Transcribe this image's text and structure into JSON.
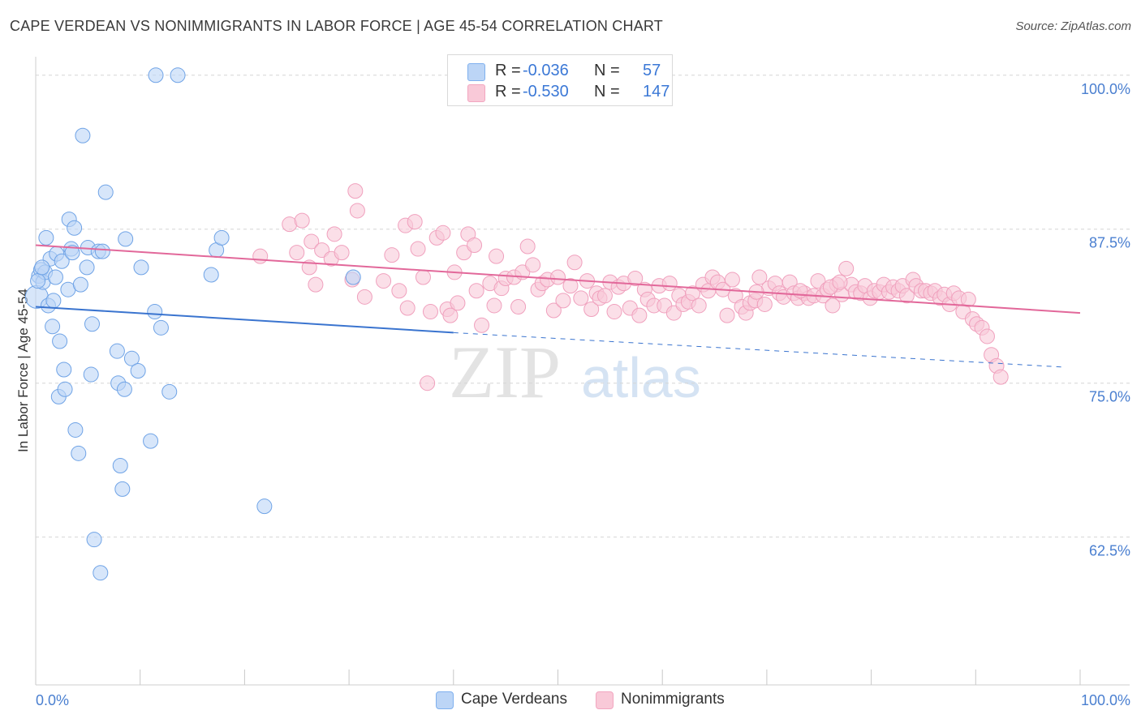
{
  "title": "CAPE VERDEAN VS NONIMMIGRANTS IN LABOR FORCE | AGE 45-54 CORRELATION CHART",
  "source": "Source: ZipAtlas.com",
  "watermark": {
    "zip": "ZIP",
    "atlas": "atlas"
  },
  "legend_top": {
    "r_label": "R = ",
    "n_label": "N = ",
    "rows": [
      {
        "r": "-0.036",
        "n": "57"
      },
      {
        "r": "-0.530",
        "n": "147"
      }
    ]
  },
  "legend_bottom": [
    "Cape Verdeans",
    "Nonimmigrants"
  ],
  "chart_data": {
    "type": "scatter",
    "title": "CAPE VERDEAN VS NONIMMIGRANTS IN LABOR FORCE | AGE 45-54 CORRELATION CHART",
    "xlabel": "",
    "ylabel": "In Labor Force | Age 45-54",
    "xlim": [
      0,
      100
    ],
    "ylim": [
      50.5,
      101.5
    ],
    "x_tick_labels": [
      "0.0%",
      "100.0%"
    ],
    "y_ticks": [
      62.5,
      75.0,
      87.5,
      100.0
    ],
    "y_tick_labels": [
      "62.5%",
      "75.0%",
      "87.5%",
      "100.0%"
    ],
    "grid": "horizontal dashed",
    "legend_position": "top-center",
    "colors": {
      "blue": "#7fb0ee",
      "blue_line": "#3a74cf",
      "pink": "#f2a6c0",
      "pink_line": "#e2689a",
      "axis_text": "#4a7fd0"
    },
    "series": [
      {
        "name": "Cape Verdeans",
        "color": "#7fb0ee",
        "line": {
          "x0": 0,
          "y0": 81.2,
          "x1": 40,
          "y1": 79.1,
          "dashed_to_x": 98.5,
          "dashed_to_y": 76.3
        },
        "points": [
          [
            0.1,
            82.0
          ],
          [
            0.3,
            83.7
          ],
          [
            0.5,
            84.2
          ],
          [
            0.7,
            83.2
          ],
          [
            0.9,
            84.0
          ],
          [
            1.0,
            86.8
          ],
          [
            1.2,
            81.3
          ],
          [
            1.4,
            85.1
          ],
          [
            1.6,
            79.6
          ],
          [
            1.7,
            81.7
          ],
          [
            1.9,
            83.6
          ],
          [
            2.0,
            85.5
          ],
          [
            2.2,
            73.9
          ],
          [
            2.3,
            78.4
          ],
          [
            2.5,
            84.9
          ],
          [
            2.7,
            76.1
          ],
          [
            2.8,
            74.5
          ],
          [
            3.1,
            82.6
          ],
          [
            3.2,
            88.3
          ],
          [
            3.4,
            85.9
          ],
          [
            3.5,
            85.6
          ],
          [
            3.7,
            87.6
          ],
          [
            3.8,
            71.2
          ],
          [
            4.1,
            69.3
          ],
          [
            4.3,
            83.0
          ],
          [
            4.5,
            95.1
          ],
          [
            4.9,
            84.4
          ],
          [
            5.0,
            86.0
          ],
          [
            5.3,
            75.7
          ],
          [
            5.4,
            79.8
          ],
          [
            5.6,
            62.3
          ],
          [
            6.0,
            85.7
          ],
          [
            6.2,
            59.6
          ],
          [
            6.4,
            85.7
          ],
          [
            6.7,
            90.5
          ],
          [
            7.8,
            77.6
          ],
          [
            7.9,
            75.0
          ],
          [
            8.1,
            68.3
          ],
          [
            8.3,
            66.4
          ],
          [
            8.5,
            74.5
          ],
          [
            8.6,
            86.7
          ],
          [
            9.2,
            77.0
          ],
          [
            9.8,
            76.0
          ],
          [
            10.1,
            84.4
          ],
          [
            11.0,
            70.3
          ],
          [
            11.4,
            80.8
          ],
          [
            11.5,
            100.0
          ],
          [
            12.0,
            79.5
          ],
          [
            12.8,
            74.3
          ],
          [
            13.6,
            100.0
          ],
          [
            16.8,
            83.8
          ],
          [
            17.3,
            85.8
          ],
          [
            17.8,
            86.8
          ],
          [
            21.9,
            65.0
          ],
          [
            30.4,
            83.6
          ],
          [
            0.2,
            83.3
          ],
          [
            0.6,
            84.4
          ]
        ]
      },
      {
        "name": "Nonimmigrants",
        "color": "#f2a6c0",
        "line": {
          "x0": 0,
          "y0": 86.2,
          "x1": 100,
          "y1": 80.7
        },
        "points": [
          [
            21.5,
            85.3
          ],
          [
            24.3,
            87.9
          ],
          [
            25.0,
            85.6
          ],
          [
            25.5,
            88.2
          ],
          [
            26.2,
            84.4
          ],
          [
            26.4,
            86.5
          ],
          [
            26.8,
            83.0
          ],
          [
            27.4,
            85.8
          ],
          [
            28.3,
            85.1
          ],
          [
            28.6,
            87.1
          ],
          [
            29.3,
            85.6
          ],
          [
            30.3,
            83.4
          ],
          [
            30.6,
            90.6
          ],
          [
            30.8,
            89.0
          ],
          [
            31.5,
            82.0
          ],
          [
            33.3,
            83.3
          ],
          [
            34.1,
            85.4
          ],
          [
            34.8,
            82.5
          ],
          [
            35.4,
            87.8
          ],
          [
            35.6,
            81.1
          ],
          [
            36.3,
            88.1
          ],
          [
            36.6,
            85.9
          ],
          [
            37.1,
            83.6
          ],
          [
            37.5,
            75.0
          ],
          [
            37.8,
            80.8
          ],
          [
            38.4,
            86.8
          ],
          [
            39.0,
            87.2
          ],
          [
            39.4,
            81.0
          ],
          [
            39.7,
            80.5
          ],
          [
            40.1,
            84.0
          ],
          [
            40.4,
            81.5
          ],
          [
            41.0,
            85.6
          ],
          [
            41.4,
            87.1
          ],
          [
            42.0,
            86.2
          ],
          [
            42.2,
            82.5
          ],
          [
            42.7,
            79.7
          ],
          [
            43.5,
            83.1
          ],
          [
            43.9,
            81.3
          ],
          [
            44.1,
            85.3
          ],
          [
            44.6,
            82.7
          ],
          [
            45.0,
            83.5
          ],
          [
            45.8,
            83.6
          ],
          [
            46.2,
            81.2
          ],
          [
            46.6,
            84.0
          ],
          [
            47.1,
            86.1
          ],
          [
            47.6,
            84.6
          ],
          [
            48.1,
            82.6
          ],
          [
            48.5,
            83.1
          ],
          [
            49.0,
            83.4
          ],
          [
            49.6,
            80.9
          ],
          [
            50.0,
            83.6
          ],
          [
            50.5,
            81.7
          ],
          [
            51.2,
            82.9
          ],
          [
            51.6,
            84.8
          ],
          [
            52.2,
            81.9
          ],
          [
            52.8,
            83.3
          ],
          [
            53.2,
            81.0
          ],
          [
            53.7,
            82.3
          ],
          [
            54.0,
            81.9
          ],
          [
            54.5,
            82.1
          ],
          [
            55.0,
            83.2
          ],
          [
            55.4,
            80.8
          ],
          [
            55.8,
            82.8
          ],
          [
            56.3,
            83.1
          ],
          [
            56.9,
            81.1
          ],
          [
            57.4,
            83.5
          ],
          [
            57.8,
            80.5
          ],
          [
            58.3,
            82.6
          ],
          [
            58.6,
            81.8
          ],
          [
            59.2,
            81.3
          ],
          [
            59.7,
            82.9
          ],
          [
            60.2,
            81.3
          ],
          [
            60.7,
            83.1
          ],
          [
            61.1,
            80.7
          ],
          [
            61.6,
            82.1
          ],
          [
            62.0,
            81.4
          ],
          [
            62.5,
            81.6
          ],
          [
            62.9,
            82.3
          ],
          [
            63.5,
            81.3
          ],
          [
            63.9,
            83.0
          ],
          [
            64.4,
            82.5
          ],
          [
            64.8,
            83.6
          ],
          [
            65.3,
            83.2
          ],
          [
            65.8,
            82.6
          ],
          [
            66.2,
            80.5
          ],
          [
            66.7,
            83.4
          ],
          [
            67.0,
            82.1
          ],
          [
            67.6,
            81.2
          ],
          [
            68.0,
            80.7
          ],
          [
            68.4,
            81.5
          ],
          [
            68.9,
            81.7
          ],
          [
            69.3,
            83.6
          ],
          [
            69.8,
            81.4
          ],
          [
            70.2,
            82.7
          ],
          [
            70.8,
            83.1
          ],
          [
            71.2,
            82.3
          ],
          [
            71.6,
            82.0
          ],
          [
            72.2,
            83.2
          ],
          [
            72.6,
            82.3
          ],
          [
            73.0,
            81.9
          ],
          [
            73.6,
            82.3
          ],
          [
            74.0,
            81.9
          ],
          [
            74.5,
            82.1
          ],
          [
            74.9,
            83.3
          ],
          [
            75.4,
            82.1
          ],
          [
            75.8,
            82.6
          ],
          [
            76.3,
            81.3
          ],
          [
            76.7,
            83.0
          ],
          [
            77.2,
            82.2
          ],
          [
            77.6,
            84.3
          ],
          [
            78.1,
            83.0
          ],
          [
            78.5,
            82.4
          ],
          [
            79.0,
            82.3
          ],
          [
            79.4,
            82.9
          ],
          [
            79.9,
            81.9
          ],
          [
            80.3,
            82.5
          ],
          [
            80.8,
            82.4
          ],
          [
            81.2,
            83.0
          ],
          [
            81.7,
            82.4
          ],
          [
            82.1,
            82.8
          ],
          [
            82.6,
            82.5
          ],
          [
            83.0,
            82.9
          ],
          [
            83.4,
            82.1
          ],
          [
            84.0,
            83.4
          ],
          [
            84.3,
            82.9
          ],
          [
            84.8,
            82.5
          ],
          [
            85.2,
            82.5
          ],
          [
            85.7,
            82.3
          ],
          [
            86.1,
            82.5
          ],
          [
            86.6,
            81.9
          ],
          [
            87.0,
            82.2
          ],
          [
            87.5,
            81.4
          ],
          [
            87.9,
            82.3
          ],
          [
            88.4,
            81.9
          ],
          [
            88.8,
            80.8
          ],
          [
            89.3,
            81.8
          ],
          [
            89.7,
            80.2
          ],
          [
            90.1,
            79.8
          ],
          [
            90.6,
            79.5
          ],
          [
            91.1,
            78.8
          ],
          [
            91.5,
            77.3
          ],
          [
            92.0,
            76.4
          ],
          [
            92.4,
            75.5
          ],
          [
            76.1,
            82.8
          ],
          [
            77.0,
            83.2
          ],
          [
            73.2,
            82.5
          ],
          [
            69.0,
            82.4
          ]
        ]
      }
    ]
  }
}
